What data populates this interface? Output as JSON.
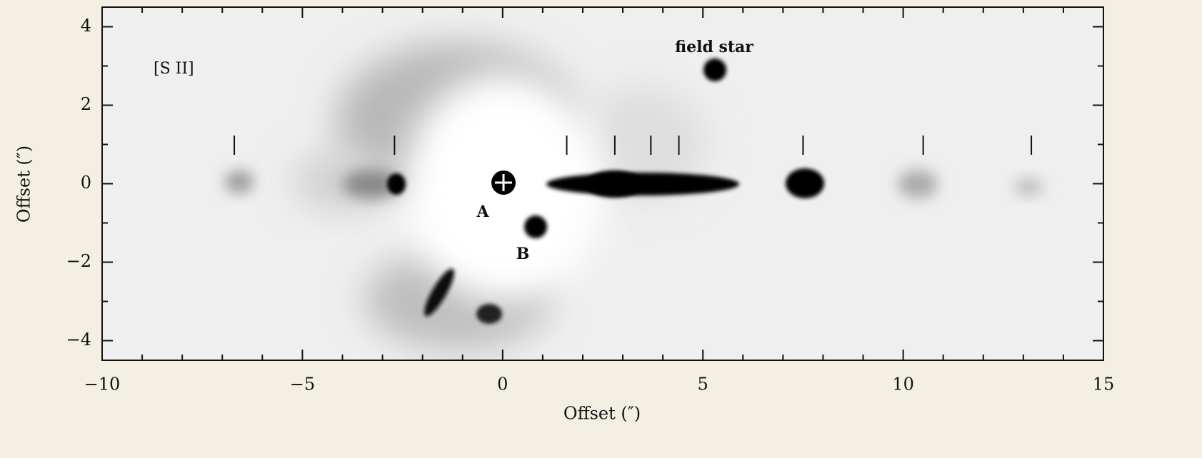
{
  "chart_data": {
    "type": "image",
    "xlabel": "Offset (″)",
    "ylabel": "Offset (″)",
    "xlim": [
      -10,
      15
    ],
    "ylim": [
      -4.5,
      4.5
    ],
    "xticks": [
      {
        "value": -10,
        "label": "−10"
      },
      {
        "value": -5,
        "label": "−5"
      },
      0,
      5,
      10,
      15
    ],
    "yticks": [
      {
        "value": -4,
        "label": "−4"
      },
      {
        "value": -2,
        "label": "−2"
      },
      0,
      2,
      4
    ],
    "xminorticks": [
      -9,
      -8,
      -7,
      -6,
      -4,
      -3,
      -2,
      -1,
      1,
      2,
      3,
      4,
      6,
      7,
      8,
      9,
      11,
      12,
      13,
      14
    ],
    "yminorticks": [
      -3,
      -1,
      1,
      3
    ],
    "knot_markers": [
      -6.7,
      -2.7,
      1.6,
      2.8,
      3.7,
      4.4,
      7.5,
      10.5,
      13.2
    ],
    "annotations": [
      "[S II]",
      "field star",
      "A",
      "B"
    ]
  }
}
